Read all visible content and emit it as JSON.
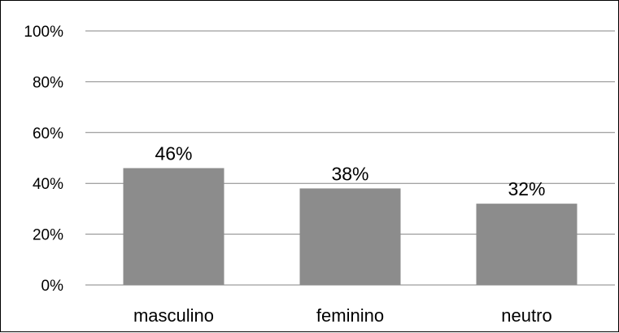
{
  "chart_data": {
    "type": "bar",
    "categories": [
      "masculino",
      "feminino",
      "neutro"
    ],
    "values": [
      46,
      38,
      32
    ],
    "data_labels": [
      "46%",
      "38%",
      "32%"
    ],
    "ylim": [
      0,
      100
    ],
    "yticks": [
      0,
      20,
      40,
      60,
      80,
      100
    ],
    "ytick_labels": [
      "0%",
      "20%",
      "40%",
      "60%",
      "80%",
      "100%"
    ],
    "grid": true,
    "legend": "none",
    "bar_color": "#8c8c8c",
    "grid_color": "#868686"
  }
}
